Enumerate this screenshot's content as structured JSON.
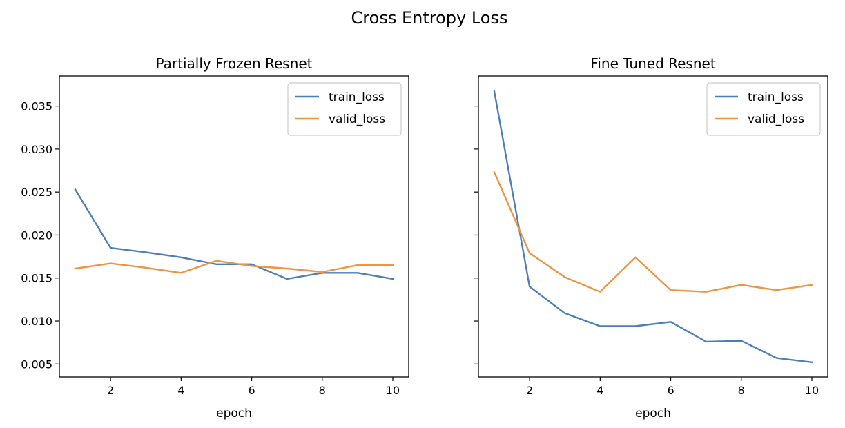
{
  "figure": {
    "suptitle": "Cross Entropy Loss"
  },
  "colors": {
    "train_loss": "#4c7fb8",
    "valid_loss": "#ed9445",
    "axes": "#000000",
    "legend_border": "#cccccc"
  },
  "chart_data": [
    {
      "type": "line",
      "title": "Partially Frozen Resnet",
      "xlabel": "epoch",
      "ylabel": "",
      "xlim": [
        0.55,
        10.45
      ],
      "ylim": [
        0.0035,
        0.0385
      ],
      "x_ticks": [
        2,
        4,
        6,
        8,
        10
      ],
      "y_ticks": [
        0.005,
        0.01,
        0.015,
        0.02,
        0.025,
        0.03,
        0.035
      ],
      "y_tick_labels": [
        "0.005",
        "0.010",
        "0.015",
        "0.020",
        "0.025",
        "0.030",
        "0.035"
      ],
      "show_y_tick_labels": true,
      "grid": false,
      "legend": "upper right",
      "x": [
        1,
        2,
        3,
        4,
        5,
        6,
        7,
        8,
        9,
        10
      ],
      "series": [
        {
          "name": "train_loss",
          "color_key": "train_loss",
          "values": [
            0.0253,
            0.0185,
            0.018,
            0.0174,
            0.0166,
            0.0166,
            0.0149,
            0.0156,
            0.0156,
            0.0149
          ]
        },
        {
          "name": "valid_loss",
          "color_key": "valid_loss",
          "values": [
            0.0161,
            0.0167,
            0.0162,
            0.0156,
            0.017,
            0.0164,
            0.0161,
            0.0157,
            0.0165,
            0.0165
          ]
        }
      ]
    },
    {
      "type": "line",
      "title": "Fine Tuned Resnet",
      "xlabel": "epoch",
      "ylabel": "",
      "xlim": [
        0.55,
        10.45
      ],
      "ylim": [
        0.0035,
        0.0385
      ],
      "x_ticks": [
        2,
        4,
        6,
        8,
        10
      ],
      "y_ticks": [
        0.005,
        0.01,
        0.015,
        0.02,
        0.025,
        0.03,
        0.035
      ],
      "y_tick_labels": [
        "0.005",
        "0.010",
        "0.015",
        "0.020",
        "0.025",
        "0.030",
        "0.035"
      ],
      "show_y_tick_labels": false,
      "grid": false,
      "legend": "upper right",
      "x": [
        1,
        2,
        3,
        4,
        5,
        6,
        7,
        8,
        9,
        10
      ],
      "series": [
        {
          "name": "train_loss",
          "color_key": "train_loss",
          "values": [
            0.0367,
            0.014,
            0.0109,
            0.0094,
            0.0094,
            0.0099,
            0.0076,
            0.0077,
            0.0057,
            0.0052
          ]
        },
        {
          "name": "valid_loss",
          "color_key": "valid_loss",
          "values": [
            0.0273,
            0.0179,
            0.0151,
            0.0134,
            0.0174,
            0.0136,
            0.0134,
            0.0142,
            0.0136,
            0.0142
          ]
        }
      ]
    }
  ]
}
